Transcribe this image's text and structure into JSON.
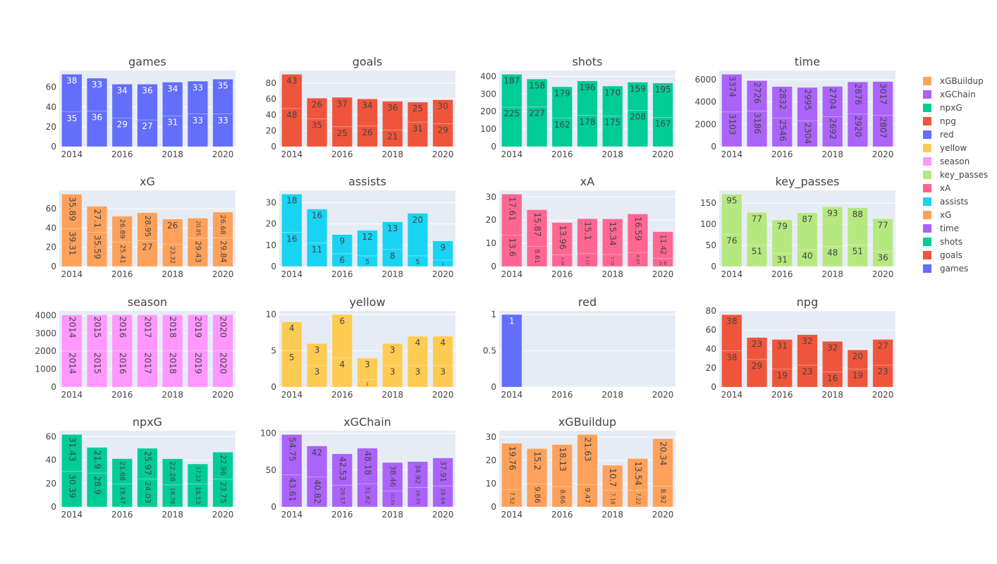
{
  "chart_data": [
    {
      "type": "bar",
      "title": "games",
      "color": "#636efa",
      "x": [
        2014,
        2015,
        2016,
        2017,
        2018,
        2019,
        2020
      ],
      "series": [
        {
          "values": [
            35,
            36,
            29,
            27,
            31,
            33,
            33
          ]
        },
        {
          "values": [
            38,
            33,
            34,
            36,
            34,
            33,
            35
          ]
        }
      ],
      "xlim": [
        2013.5,
        2020.5
      ],
      "xticks": [
        2014,
        2016,
        2018,
        2020
      ],
      "ylim": [
        0,
        76.8
      ],
      "yticks": [
        0,
        20,
        40,
        60
      ]
    },
    {
      "type": "bar",
      "title": "goals",
      "color": "#EF553B",
      "x": [
        2014,
        2015,
        2016,
        2017,
        2018,
        2019,
        2020
      ],
      "series": [
        {
          "values": [
            48,
            35,
            25,
            26,
            21,
            31,
            29
          ]
        },
        {
          "values": [
            43,
            26,
            37,
            34,
            36,
            25,
            30
          ]
        }
      ],
      "xlim": [
        2013.5,
        2020.5
      ],
      "xticks": [
        2014,
        2016,
        2018,
        2020
      ],
      "ylim": [
        0,
        95.8
      ],
      "yticks": [
        0,
        20,
        40,
        60,
        80
      ]
    },
    {
      "type": "bar",
      "title": "shots",
      "color": "#00cc96",
      "x": [
        2014,
        2015,
        2016,
        2017,
        2018,
        2019,
        2020
      ],
      "series": [
        {
          "values": [
            225,
            227,
            162,
            178,
            175,
            208,
            167
          ]
        },
        {
          "values": [
            187,
            158,
            179,
            196,
            170,
            159,
            195
          ]
        }
      ],
      "xlim": [
        2013.5,
        2020.5
      ],
      "xticks": [
        2014,
        2016,
        2018,
        2020
      ],
      "ylim": [
        0,
        433.7
      ],
      "yticks": [
        0,
        100,
        200,
        300,
        400
      ]
    },
    {
      "type": "bar",
      "title": "time",
      "color": "#ab63fa",
      "x": [
        2014,
        2015,
        2016,
        2017,
        2018,
        2019,
        2020
      ],
      "series": [
        {
          "values": [
            3103,
            3186,
            2546,
            2304,
            2692,
            2920,
            2807
          ]
        },
        {
          "values": [
            3374,
            2726,
            2832,
            2995,
            2704,
            2876,
            3017
          ]
        }
      ],
      "xlim": [
        2013.5,
        2020.5
      ],
      "xticks": [
        2014,
        2016,
        2018,
        2020
      ],
      "ylim": [
        0,
        6818
      ],
      "yticks": [
        0,
        2000,
        4000,
        6000
      ]
    },
    {
      "type": "bar",
      "title": "xG",
      "color": "#FFA15A",
      "x": [
        2014,
        2015,
        2016,
        2017,
        2018,
        2019,
        2020
      ],
      "series": [
        {
          "values": [
            39.31,
            35.59,
            25.41,
            27,
            23.32,
            29.43,
            29.84
          ]
        },
        {
          "values": [
            35.89,
            27.1,
            26.89,
            28.95,
            26,
            20.85,
            26.68
          ]
        }
      ],
      "xlim": [
        2013.5,
        2020.5
      ],
      "xticks": [
        2014,
        2016,
        2018,
        2020
      ],
      "ylim": [
        0,
        79.2
      ],
      "yticks": [
        0,
        20,
        40,
        60
      ]
    },
    {
      "type": "bar",
      "title": "assists",
      "color": "#19d3f3",
      "x": [
        2014,
        2015,
        2016,
        2017,
        2018,
        2019,
        2020
      ],
      "series": [
        {
          "values": [
            16,
            11,
            6,
            5,
            8,
            5,
            3
          ]
        },
        {
          "values": [
            18,
            16,
            9,
            12,
            13,
            20,
            9
          ]
        }
      ],
      "xlim": [
        2013.5,
        2020.5
      ],
      "xticks": [
        2014,
        2016,
        2018,
        2020
      ],
      "ylim": [
        0,
        35.8
      ],
      "yticks": [
        0,
        10,
        20,
        30
      ]
    },
    {
      "type": "bar",
      "title": "xA",
      "color": "#FF6692",
      "x": [
        2014,
        2015,
        2016,
        2017,
        2018,
        2019,
        2020
      ],
      "series": [
        {
          "values": [
            13.6,
            8.61,
            4.99,
            5.52,
            5.19,
            6.07,
            3.6
          ]
        },
        {
          "values": [
            17.61,
            15.87,
            13.96,
            15.1,
            15.34,
            16.59,
            11.42
          ]
        }
      ],
      "xlim": [
        2013.5,
        2020.5
      ],
      "xticks": [
        2014,
        2016,
        2018,
        2020
      ],
      "ylim": [
        0,
        32.85
      ],
      "yticks": [
        0,
        10,
        20,
        30
      ]
    },
    {
      "type": "bar",
      "title": "key_passes",
      "color": "#B6E880",
      "x": [
        2014,
        2015,
        2016,
        2017,
        2018,
        2019,
        2020
      ],
      "series": [
        {
          "values": [
            76,
            51,
            31,
            40,
            48,
            51,
            36
          ]
        },
        {
          "values": [
            95,
            77,
            79,
            87,
            93,
            88,
            77
          ]
        }
      ],
      "xlim": [
        2013.5,
        2020.5
      ],
      "xticks": [
        2014,
        2016,
        2018,
        2020
      ],
      "ylim": [
        0,
        180
      ],
      "yticks": [
        0,
        50,
        100,
        150
      ]
    },
    {
      "type": "bar",
      "title": "season",
      "color": "#FF97FF",
      "x": [
        2014,
        2015,
        2016,
        2017,
        2018,
        2019,
        2020
      ],
      "series": [
        {
          "values": [
            2014,
            2015,
            2016,
            2017,
            2018,
            2019,
            2020
          ]
        },
        {
          "values": [
            2014,
            2015,
            2016,
            2017,
            2018,
            2019,
            2020
          ]
        }
      ],
      "xlim": [
        2013.5,
        2020.5
      ],
      "xticks": [
        2014,
        2016,
        2018,
        2020
      ],
      "ylim": [
        0,
        4252.6
      ],
      "yticks": [
        0,
        1000,
        2000,
        3000,
        4000
      ]
    },
    {
      "type": "bar",
      "title": "yellow",
      "color": "#FECB52",
      "x": [
        2014,
        2015,
        2016,
        2017,
        2018,
        2019,
        2020
      ],
      "series": [
        {
          "values": [
            5,
            3,
            4,
            1,
            3,
            3,
            3
          ]
        },
        {
          "values": [
            4,
            3,
            6,
            3,
            3,
            4,
            4
          ]
        }
      ],
      "xlim": [
        2013.5,
        2020.5
      ],
      "xticks": [
        2014,
        2016,
        2018,
        2020
      ],
      "ylim": [
        0,
        10.5
      ],
      "yticks": [
        0,
        5,
        10
      ]
    },
    {
      "type": "bar",
      "title": "red",
      "color": "#636efa",
      "x": [
        2014,
        2015,
        2016,
        2017,
        2018,
        2019,
        2020
      ],
      "series": [
        {
          "values": [
            1,
            0,
            0,
            0,
            0,
            0,
            0
          ]
        }
      ],
      "xlim": [
        2013.5,
        2020.5
      ],
      "xticks": [
        2014,
        2016,
        2018,
        2020
      ],
      "ylim": [
        0,
        1.05
      ],
      "yticks": [
        0,
        0.5,
        1
      ]
    },
    {
      "type": "bar",
      "title": "npg",
      "color": "#EF553B",
      "x": [
        2014,
        2015,
        2016,
        2017,
        2018,
        2019,
        2020
      ],
      "series": [
        {
          "values": [
            38,
            29,
            19,
            23,
            16,
            19,
            23
          ]
        },
        {
          "values": [
            38,
            23,
            31,
            32,
            32,
            20,
            27
          ]
        }
      ],
      "xlim": [
        2013.5,
        2020.5
      ],
      "xticks": [
        2014,
        2016,
        2018,
        2020
      ],
      "ylim": [
        0,
        80
      ],
      "yticks": [
        0,
        20,
        40,
        60,
        80
      ]
    },
    {
      "type": "bar",
      "title": "npxG",
      "color": "#00cc96",
      "x": [
        2014,
        2015,
        2016,
        2017,
        2018,
        2019,
        2020
      ],
      "series": [
        {
          "values": [
            30.39,
            28.9,
            19.47,
            24.03,
            18.76,
            19.53,
            23.75
          ]
        },
        {
          "values": [
            31.43,
            21.9,
            21.68,
            25.97,
            22.28,
            17.13,
            22.96
          ]
        }
      ],
      "xlim": [
        2013.5,
        2020.5
      ],
      "xticks": [
        2014,
        2016,
        2018,
        2020
      ],
      "ylim": [
        0,
        65
      ],
      "yticks": [
        0,
        20,
        40,
        60
      ]
    },
    {
      "type": "bar",
      "title": "xGChain",
      "color": "#ab63fa",
      "x": [
        2014,
        2015,
        2016,
        2017,
        2018,
        2019,
        2020
      ],
      "series": [
        {
          "values": [
            43.61,
            40.82,
            29.57,
            31.62,
            21.85,
            26.55,
            28.64
          ]
        },
        {
          "values": [
            54.75,
            42,
            42.53,
            48.18,
            38.46,
            34.92,
            37.91
          ]
        }
      ],
      "xlim": [
        2013.5,
        2020.5
      ],
      "xticks": [
        2014,
        2016,
        2018,
        2020
      ],
      "ylim": [
        0,
        103.5
      ],
      "yticks": [
        0,
        50,
        100
      ]
    },
    {
      "type": "bar",
      "title": "xGBuildup",
      "color": "#FFA15A",
      "x": [
        2014,
        2015,
        2016,
        2017,
        2018,
        2019,
        2020
      ],
      "series": [
        {
          "values": [
            7.52,
            9.86,
            8.66,
            9.47,
            7.18,
            7.22,
            8.92
          ]
        },
        {
          "values": [
            19.76,
            15.2,
            18.13,
            21.63,
            10.7,
            13.54,
            20.34
          ]
        }
      ],
      "xlim": [
        2013.5,
        2020.5
      ],
      "xticks": [
        2014,
        2016,
        2018,
        2020
      ],
      "ylim": [
        0,
        32.7
      ],
      "yticks": [
        0,
        10,
        20,
        30
      ]
    }
  ]
}
